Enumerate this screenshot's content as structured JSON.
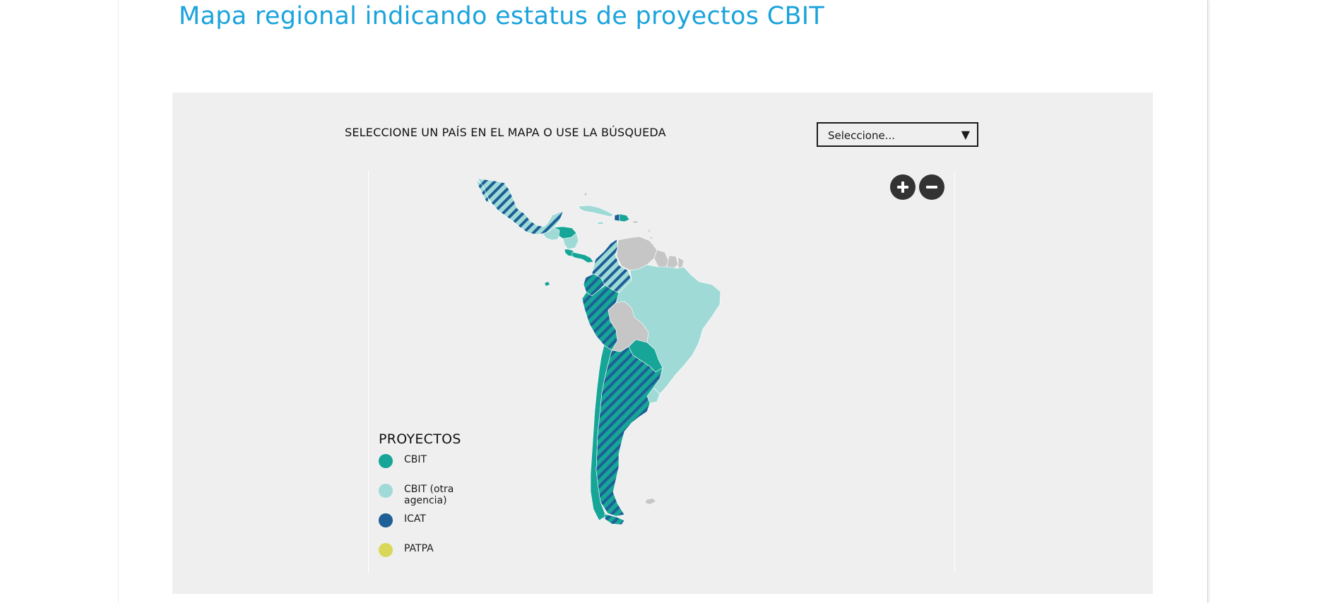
{
  "page": {
    "title": "Mapa regional indicando estatus de proyectos CBIT"
  },
  "map_panel": {
    "instructions": "SELECCIONE UN PAÍS EN EL MAPA O USE LA BÚSQUEDA",
    "country_select": {
      "value": "Seleccione...",
      "arrow": "▼"
    },
    "zoom_in_icon": "plus-icon",
    "zoom_out_icon": "minus-icon"
  },
  "legend": {
    "title": "PROYECTOS",
    "items": [
      {
        "label": "CBIT",
        "color": "#16a596"
      },
      {
        "label": "CBIT (otra agencia)",
        "color": "#a0dad7"
      },
      {
        "label": "ICAT",
        "color": "#1d5f96"
      },
      {
        "label": "PATPA",
        "color": "#d9d75a"
      }
    ]
  },
  "colors": {
    "title": "#1aa3dc",
    "cbit": "#16a596",
    "cbit_otra_agencia": "#a0dad7",
    "icat": "#1d5f96",
    "no_project": "#c6c6c6",
    "panel_bg": "#efefef"
  }
}
